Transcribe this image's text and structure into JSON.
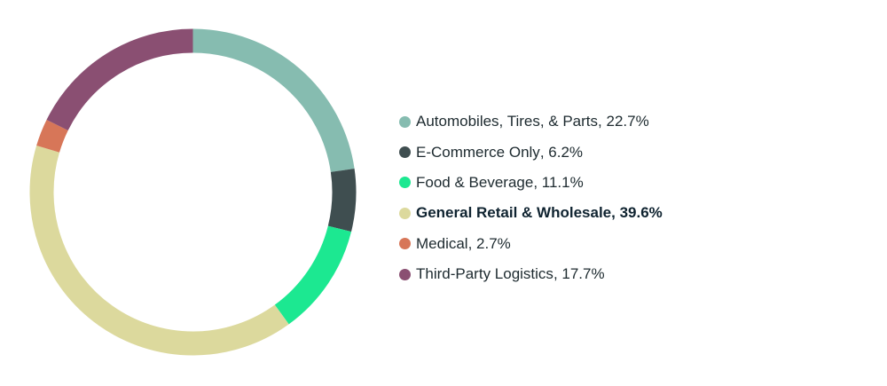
{
  "chart_data": {
    "type": "pie",
    "style": "donut",
    "title": "",
    "legend_position": "right",
    "slices": [
      {
        "label": "Automobiles, Tires, & Parts",
        "value": 22.7,
        "value_text": "22.7%",
        "color": "#86bcb0",
        "highlight": false
      },
      {
        "label": "E-Commerce Only",
        "value": 6.2,
        "value_text": "6.2%",
        "color": "#3f4e50",
        "highlight": false
      },
      {
        "label": "Food & Beverage",
        "value": 11.1,
        "value_text": "11.1%",
        "color": "#1ce891",
        "highlight": false
      },
      {
        "label": "General Retail & Wholesale",
        "value": 39.6,
        "value_text": "39.6%",
        "color": "#dcd99d",
        "highlight": true
      },
      {
        "label": "Medical",
        "value": 2.7,
        "value_text": "2.7%",
        "color": "#d77658",
        "highlight": false
      },
      {
        "label": "Third-Party Logistics",
        "value": 17.7,
        "value_text": "17.7%",
        "color": "#8a4f72",
        "highlight": false
      }
    ]
  }
}
